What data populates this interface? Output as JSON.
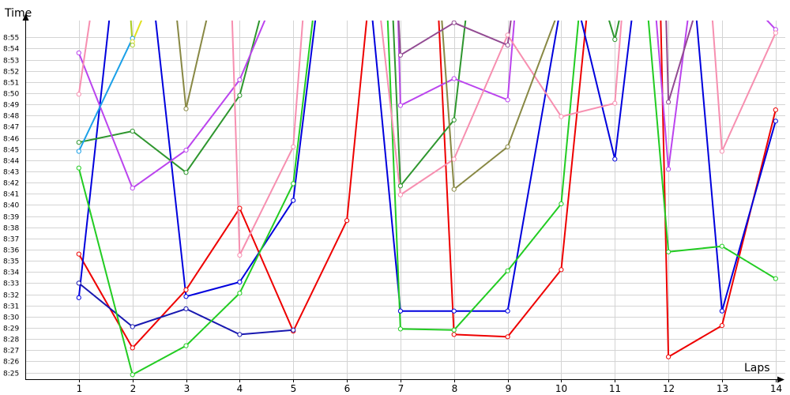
{
  "chart_data": {
    "type": "line",
    "xlabel": "Laps",
    "ylabel": "Time",
    "x": [
      1,
      2,
      3,
      4,
      5,
      6,
      7,
      8,
      9,
      10,
      11,
      12,
      13,
      14
    ],
    "xlim": [
      0,
      14.18
    ],
    "ylim_minutes": [
      504.4,
      536.5
    ],
    "grid": true,
    "y_ticks": [
      "8:25",
      "8:26",
      "8:27",
      "8:28",
      "8:29",
      "8:30",
      "8:31",
      "8:32",
      "8:33",
      "8:34",
      "8:35",
      "8:36",
      "8:37",
      "8:38",
      "8:39",
      "8:40",
      "8:41",
      "8:42",
      "8:43",
      "8:44",
      "8:45",
      "8:46",
      "8:47",
      "8:48",
      "8:49",
      "8:50",
      "8:51",
      "8:52",
      "8:53",
      "8:54",
      "8:55"
    ],
    "x_ticks": [
      "1",
      "2",
      "3",
      "4",
      "5",
      "6",
      "7",
      "8",
      "9",
      "10",
      "11",
      "12",
      "13",
      "14"
    ],
    "series": [
      {
        "color": "#ee0000",
        "values": [
          {
            "x": 1,
            "y": "8:35.6"
          },
          {
            "x": 2,
            "y": "8:27.2"
          },
          {
            "x": 3,
            "y": "8:32.4"
          },
          {
            "x": 4,
            "y": "8:39.7"
          },
          {
            "x": 5,
            "y": "8:28.7"
          },
          {
            "x": 6,
            "y": "8:38.6"
          },
          {
            "x": 6.4,
            "y": "8:58"
          },
          {
            "x": 7.7,
            "y": "8:58"
          },
          {
            "x": 8,
            "y": "8:28.4"
          },
          {
            "x": 9,
            "y": "8:28.2"
          },
          {
            "x": 10,
            "y": "8:34.2"
          },
          {
            "x": 10.5,
            "y": "8:58"
          },
          {
            "x": 11.85,
            "y": "8:58"
          },
          {
            "x": 12,
            "y": "8:26.4"
          },
          {
            "x": 13,
            "y": "8:29.2"
          },
          {
            "x": 14,
            "y": "8:48.5"
          }
        ]
      },
      {
        "color": "#0000dd",
        "values": [
          {
            "x": 1,
            "y": "8:31.7"
          },
          {
            "x": 1.6,
            "y": "8:58"
          },
          {
            "x": 2.4,
            "y": "8:58"
          },
          {
            "x": 3,
            "y": "8:31.8"
          },
          {
            "x": 4,
            "y": "8:33.1"
          },
          {
            "x": 5,
            "y": "8:40.4"
          },
          {
            "x": 5.45,
            "y": "8:58"
          },
          {
            "x": 6.45,
            "y": "8:58"
          },
          {
            "x": 7,
            "y": "8:30.5"
          },
          {
            "x": 8,
            "y": "8:30.5"
          },
          {
            "x": 9,
            "y": "8:30.5"
          },
          {
            "x": 10,
            "y": "8:58"
          },
          {
            "x": 10.3,
            "y": "8:58"
          },
          {
            "x": 11,
            "y": "8:44.1"
          },
          {
            "x": 11.35,
            "y": "8:58"
          },
          {
            "x": 12.5,
            "y": "8:58"
          },
          {
            "x": 13,
            "y": "8:30.5"
          },
          {
            "x": 14,
            "y": "8:47.5"
          }
        ]
      },
      {
        "color": "#1818b0",
        "values": [
          {
            "x": 1,
            "y": "8:33.0"
          },
          {
            "x": 2,
            "y": "8:29.1"
          },
          {
            "x": 3,
            "y": "8:30.7"
          },
          {
            "x": 4,
            "y": "8:28.4"
          },
          {
            "x": 5,
            "y": "8:28.8"
          }
        ]
      },
      {
        "color": "#22cc22",
        "values": [
          {
            "x": 1,
            "y": "8:43.3"
          },
          {
            "x": 2,
            "y": "8:24.8"
          },
          {
            "x": 3,
            "y": "8:27.4"
          },
          {
            "x": 4,
            "y": "8:32.1"
          },
          {
            "x": 5,
            "y": "8:41.9"
          },
          {
            "x": 5.4,
            "y": "8:58"
          },
          {
            "x": 6.75,
            "y": "8:58"
          },
          {
            "x": 7,
            "y": "8:28.9"
          },
          {
            "x": 8,
            "y": "8:28.8"
          },
          {
            "x": 9,
            "y": "8:34.1"
          },
          {
            "x": 10,
            "y": "8:40.1"
          },
          {
            "x": 10.35,
            "y": "8:58"
          },
          {
            "x": 11.6,
            "y": "8:58"
          },
          {
            "x": 12,
            "y": "8:35.8"
          },
          {
            "x": 13,
            "y": "8:36.3"
          },
          {
            "x": 14,
            "y": "8:33.4"
          }
        ]
      },
      {
        "color": "#2e962e",
        "values": [
          {
            "x": 1,
            "y": "8:45.6"
          },
          {
            "x": 2,
            "y": "8:46.6"
          },
          {
            "x": 3,
            "y": "8:42.9"
          },
          {
            "x": 4,
            "y": "8:49.8"
          },
          {
            "x": 4.45,
            "y": "8:58"
          },
          {
            "x": 6.85,
            "y": "8:58"
          },
          {
            "x": 7,
            "y": "8:41.7"
          },
          {
            "x": 8,
            "y": "8:47.6"
          },
          {
            "x": 8.25,
            "y": "8:58"
          },
          {
            "x": 10.8,
            "y": "8:58"
          },
          {
            "x": 11,
            "y": "8:54.8"
          },
          {
            "x": 11.15,
            "y": "8:58"
          }
        ]
      },
      {
        "color": "#bb44ee",
        "values": [
          {
            "x": 1,
            "y": "8:53.6"
          },
          {
            "x": 2,
            "y": "8:41.5"
          },
          {
            "x": 3,
            "y": "8:44.9"
          },
          {
            "x": 4,
            "y": "8:51.2"
          },
          {
            "x": 4.6,
            "y": "8:58"
          },
          {
            "x": 6.95,
            "y": "8:58"
          },
          {
            "x": 7,
            "y": "8:48.9"
          },
          {
            "x": 8,
            "y": "8:51.3"
          },
          {
            "x": 9,
            "y": "8:49.4"
          },
          {
            "x": 9.15,
            "y": "8:58"
          },
          {
            "x": 11.75,
            "y": "8:58"
          },
          {
            "x": 12,
            "y": "8:43.2"
          },
          {
            "x": 12.4,
            "y": "8:58"
          },
          {
            "x": 13.55,
            "y": "8:58"
          },
          {
            "x": 14,
            "y": "8:55.7"
          }
        ]
      },
      {
        "color": "#f78fb0",
        "values": [
          {
            "x": 1,
            "y": "8:49.9"
          },
          {
            "x": 1.25,
            "y": "8:58"
          },
          {
            "x": 3.85,
            "y": "8:58"
          },
          {
            "x": 4,
            "y": "8:35.5"
          },
          {
            "x": 5,
            "y": "8:45.2"
          },
          {
            "x": 5.2,
            "y": "8:58"
          },
          {
            "x": 6.6,
            "y": "8:58"
          },
          {
            "x": 7,
            "y": "8:40.9"
          },
          {
            "x": 8,
            "y": "8:44.1"
          },
          {
            "x": 9,
            "y": "8:55.2"
          },
          {
            "x": 10,
            "y": "8:47.9"
          },
          {
            "x": 11,
            "y": "8:49.1"
          },
          {
            "x": 11.15,
            "y": "8:58"
          },
          {
            "x": 12.8,
            "y": "8:58"
          },
          {
            "x": 13,
            "y": "8:44.8"
          },
          {
            "x": 14,
            "y": "8:55.4"
          }
        ]
      },
      {
        "color": "#888844",
        "values": [
          {
            "x": 2.8,
            "y": "8:58"
          },
          {
            "x": 3,
            "y": "8:48.6"
          },
          {
            "x": 3.45,
            "y": "8:58"
          },
          {
            "x": 7.75,
            "y": "8:58"
          },
          {
            "x": 8,
            "y": "8:41.4"
          },
          {
            "x": 9,
            "y": "8:45.2"
          },
          {
            "x": 10,
            "y": "8:58"
          }
        ]
      },
      {
        "color": "#924a92",
        "values": [
          {
            "x": 6.95,
            "y": "8:58"
          },
          {
            "x": 7,
            "y": "8:53.4"
          },
          {
            "x": 8,
            "y": "8:56.3"
          },
          {
            "x": 9,
            "y": "8:54.3"
          },
          {
            "x": 9.1,
            "y": "8:58"
          },
          {
            "x": 11.95,
            "y": "8:58"
          },
          {
            "x": 12,
            "y": "8:49.2"
          },
          {
            "x": 12.55,
            "y": "8:58"
          }
        ]
      },
      {
        "color": "#1aa0e8",
        "values": [
          {
            "x": 1,
            "y": "8:44.8"
          },
          {
            "x": 2,
            "y": "8:54.9"
          }
        ]
      },
      {
        "color": "#e0e020",
        "values": [
          {
            "x": 2,
            "y": "8:54.6"
          },
          {
            "x": 2.3,
            "y": "8:58"
          }
        ]
      },
      {
        "color": "#aacc22",
        "values": [
          {
            "x": 1.95,
            "y": "8:58"
          },
          {
            "x": 2,
            "y": "8:54.3"
          }
        ]
      }
    ]
  }
}
